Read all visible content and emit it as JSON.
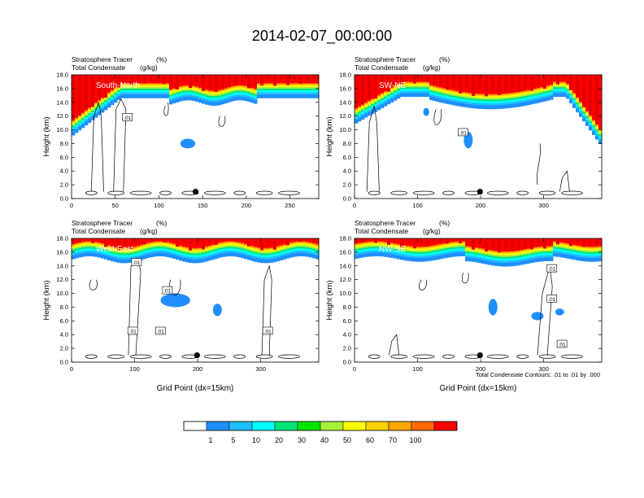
{
  "figure": {
    "title": "2014-02-07_00:00:00",
    "contour_note": "Total Condensate Contours: .01 to .01 by .000",
    "colorbar": {
      "colors": [
        "#ffffff",
        "#1f8fff",
        "#1fbfff",
        "#00ffff",
        "#00e57a",
        "#00e400",
        "#a8f03c",
        "#ffff00",
        "#ffd000",
        "#ffa500",
        "#ff6a00",
        "#ff0000"
      ],
      "labels": [
        "1",
        "5",
        "10",
        "20",
        "30",
        "40",
        "50",
        "60",
        "70",
        "100"
      ]
    },
    "line_colors": {
      "contour": "#000000",
      "frame": "#000000"
    }
  },
  "chart_data": [
    {
      "type": "heatmap",
      "panel_label": "South-North",
      "subtitle_left_1": "Stratosphere Tracer",
      "subtitle_right_1": "(%)",
      "subtitle_left_2": "Total Condensate",
      "subtitle_right_2": "(g/kg)",
      "xlabel": "",
      "ylabel": "Height (km)",
      "xlim": [
        0,
        283
      ],
      "ylim": [
        0,
        18
      ],
      "xticks": [
        0,
        50,
        100,
        150,
        200,
        250
      ],
      "yticks": [
        "0.0",
        "2.0",
        "4.0",
        "6.0",
        "8.0",
        "10.0",
        "12.0",
        "14.0",
        "16.0",
        "18.0"
      ],
      "marker": {
        "x": 142,
        "y": 1.0
      },
      "contour_labels": [
        {
          "x": 64,
          "y": 11.8,
          "text": ".01"
        }
      ]
    },
    {
      "type": "heatmap",
      "panel_label": "SW-NE",
      "subtitle_left_1": "Stratosphere Tracer",
      "subtitle_right_1": "(%)",
      "subtitle_left_2": "Total Condensate",
      "subtitle_right_2": "(g/kg)",
      "xlabel": "",
      "ylabel": "Height (km)",
      "xlim": [
        0,
        392
      ],
      "ylim": [
        0,
        18
      ],
      "xticks": [
        0,
        100,
        200,
        300
      ],
      "yticks": [
        "0.0",
        "2.0",
        "4.0",
        "6.0",
        "8.0",
        "10.0",
        "12.0",
        "14.0",
        "16.0",
        "18.0"
      ],
      "marker": {
        "x": 199,
        "y": 1.0
      },
      "contour_labels": [
        {
          "x": 172,
          "y": 9.6,
          "text": ".01"
        }
      ]
    },
    {
      "type": "heatmap",
      "panel_label": "West-East",
      "subtitle_left_1": "Stratosphere Tracer",
      "subtitle_right_1": "(%)",
      "subtitle_left_2": "Total Condensate",
      "subtitle_right_2": "(g/kg)",
      "xlabel": "Grid Point (dx=15km)",
      "ylabel": "Height (km)",
      "xlim": [
        0,
        392
      ],
      "ylim": [
        0,
        18
      ],
      "xticks": [
        0,
        100,
        200,
        300
      ],
      "yticks": [
        "0.0",
        "2.0",
        "4.0",
        "6.0",
        "8.0",
        "10.0",
        "12.0",
        "14.0",
        "16.0",
        "18.0"
      ],
      "marker": {
        "x": 199,
        "y": 1.0
      },
      "contour_labels": [
        {
          "x": 103,
          "y": 14.5,
          "text": ".01"
        },
        {
          "x": 152,
          "y": 10.4,
          "text": ".01"
        },
        {
          "x": 97,
          "y": 4.5,
          "text": ".01"
        },
        {
          "x": 141,
          "y": 4.5,
          "text": ".01"
        },
        {
          "x": 311,
          "y": 4.5,
          "text": ".01"
        }
      ]
    },
    {
      "type": "heatmap",
      "panel_label": "NW-SE",
      "subtitle_left_1": "Stratosphere Tracer",
      "subtitle_right_1": "(%)",
      "subtitle_left_2": "Total Condensate",
      "subtitle_right_2": "(g/kg)",
      "xlabel": "Grid Point (dx=15km)",
      "ylabel": "Height (km)",
      "xlim": [
        0,
        392
      ],
      "ylim": [
        0,
        18
      ],
      "xticks": [
        0,
        100,
        200,
        300
      ],
      "yticks": [
        "0.0",
        "2.0",
        "4.0",
        "6.0",
        "8.0",
        "10.0",
        "12.0",
        "14.0",
        "16.0",
        "18.0"
      ],
      "marker": {
        "x": 199,
        "y": 1.0
      },
      "contour_labels": [
        {
          "x": 313,
          "y": 13.6,
          "text": ".01"
        },
        {
          "x": 313,
          "y": 9.2,
          "text": ".01"
        },
        {
          "x": 329,
          "y": 2.6,
          "text": ".01"
        }
      ]
    }
  ]
}
